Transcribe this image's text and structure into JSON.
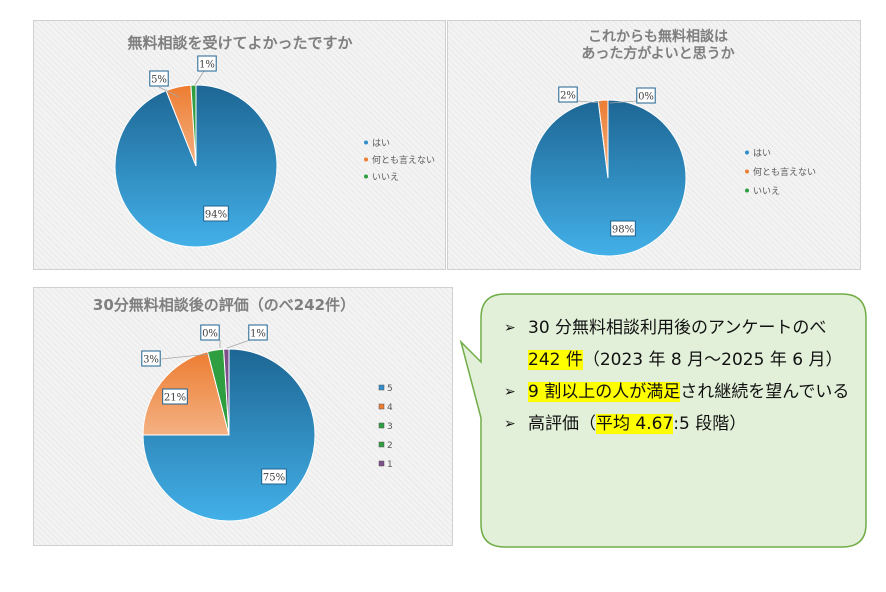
{
  "colors": {
    "blue": "#2f8ecb",
    "blue_dark": "#1d6694",
    "orange": "#ed7d31",
    "orange_light": "#f4b183",
    "green": "#2e9e40",
    "purple": "#7d4e8a",
    "callout_fill": "#e2f0d9",
    "callout_border": "#70ad47",
    "highlight": "#ffff00"
  },
  "chart_data": [
    {
      "type": "pie",
      "title": "無料相談を受けてよかったですか",
      "categories": [
        "はい",
        "何とも言えない",
        "いいえ"
      ],
      "values": [
        94,
        5,
        1
      ],
      "labels": [
        "94%",
        "5%",
        "1%"
      ],
      "legend": "right"
    },
    {
      "type": "pie",
      "title": "これからも無料相談は\nあった方がよいと思うか",
      "categories": [
        "はい",
        "何とも言えない",
        "いいえ"
      ],
      "values": [
        98,
        2,
        0
      ],
      "labels": [
        "98%",
        "2%",
        "0%"
      ],
      "legend": "right"
    },
    {
      "type": "pie",
      "title": "30分無料相談後の評価（のべ242件）",
      "categories": [
        "5",
        "4",
        "3",
        "2",
        "1"
      ],
      "values": [
        75,
        21,
        3,
        0,
        1
      ],
      "labels": [
        "75%",
        "21%",
        "3%",
        "0%",
        "1%"
      ],
      "legend": "right"
    }
  ],
  "callout": {
    "bullets": [
      [
        {
          "t": "30 分無料相談利用後のアンケートのべ "
        },
        {
          "t": "242 件",
          "hl": true
        },
        {
          "t": "（2023 年 8 月～2025 年 6 月）"
        }
      ],
      [
        {
          "t": "9 割以上の人が満足",
          "hl": true
        },
        {
          "t": "され継続を望んでいる"
        }
      ],
      [
        {
          "t": "高評価（"
        },
        {
          "t": "平均 4.67",
          "hl": true
        },
        {
          "t": ":5 段階）"
        }
      ]
    ]
  }
}
